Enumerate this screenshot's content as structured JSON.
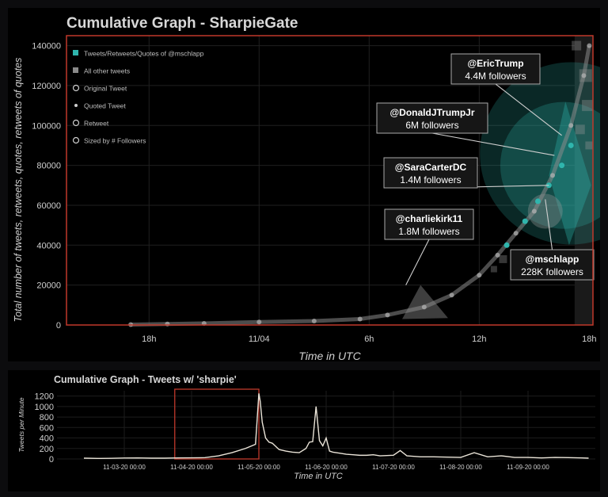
{
  "main_chart": {
    "title": "Cumulative Graph - SharpieGate",
    "xlabel": "Time in UTC",
    "ylabel": "Total number of tweets, retweets, quotes, retweets of quotes",
    "legend": [
      "Tweets/Retweets/Quotes of @mschlapp",
      "All other tweets",
      "Original Tweet",
      "Quoted Tweet",
      "Retweet",
      "Sized by # Followers"
    ],
    "callouts": [
      {
        "handle": "@EricTrump",
        "followers": "4.4M followers"
      },
      {
        "handle": "@DonaldJTrumpJr",
        "followers": "6M followers"
      },
      {
        "handle": "@SaraCarterDC",
        "followers": "1.4M followers"
      },
      {
        "handle": "@charliekirk11",
        "followers": "1.8M followers"
      },
      {
        "handle": "@mschlapp",
        "followers": "228K followers"
      }
    ],
    "colors": {
      "accent": "#2fb5ad",
      "frame": "#c0392b",
      "other": "#8a8a8a"
    }
  },
  "mini_chart": {
    "title": "Cumulative Graph - Tweets w/ 'sharpie'",
    "xlabel": "Time in UTC",
    "ylabel": "Tweets per Minute"
  },
  "chart_data": [
    {
      "type": "scatter",
      "title": "Cumulative Graph - SharpieGate",
      "xlabel": "Time in UTC",
      "ylabel": "Total number of tweets, retweets, quotes, retweets of quotes",
      "x_ticks": [
        "18h",
        "11/04",
        "6h",
        "12h",
        "18h"
      ],
      "x_tick_hours": [
        18,
        24,
        30,
        36,
        42
      ],
      "xlim_hours": [
        13.5,
        42.2
      ],
      "ylim": [
        0,
        145000
      ],
      "yticks": [
        0,
        20000,
        40000,
        60000,
        80000,
        100000,
        120000,
        140000
      ],
      "grid": true,
      "legend_position": "top-left",
      "series": [
        {
          "name": "All other tweets",
          "points": [
            [
              17,
              200
            ],
            [
              19,
              500
            ],
            [
              21,
              800
            ],
            [
              24,
              1500
            ],
            [
              27,
              2000
            ],
            [
              29.5,
              3000
            ],
            [
              31,
              5000
            ],
            [
              33,
              9000
            ],
            [
              34.5,
              15000
            ],
            [
              36,
              25000
            ],
            [
              37,
              35000
            ],
            [
              38,
              46000
            ],
            [
              39,
              57000
            ],
            [
              40,
              75000
            ],
            [
              41,
              100000
            ],
            [
              41.7,
              125000
            ],
            [
              42,
              140000
            ]
          ]
        },
        {
          "name": "Tweets/Retweets/Quotes of @mschlapp",
          "points": [
            [
              37.5,
              40000
            ],
            [
              38.5,
              52000
            ],
            [
              39.2,
              62000
            ],
            [
              39.8,
              70000
            ],
            [
              40.5,
              80000
            ],
            [
              41,
              90000
            ]
          ]
        }
      ],
      "annotations": [
        {
          "text": "@EricTrump 4.4M followers",
          "x": 40.5,
          "y": 95000
        },
        {
          "text": "@DonaldJTrumpJr 6M followers",
          "x": 40.1,
          "y": 85000
        },
        {
          "text": "@SaraCarterDC 1.4M followers",
          "x": 39.8,
          "y": 70000
        },
        {
          "text": "@charliekirk11 1.8M followers",
          "x": 32,
          "y": 20000
        },
        {
          "text": "@mschlapp 228K followers",
          "x": 39.6,
          "y": 63000
        }
      ]
    },
    {
      "type": "line",
      "title": "Cumulative Graph - Tweets w/ 'sharpie'",
      "xlabel": "Time in UTC",
      "ylabel": "Tweets per Minute",
      "x_ticks": [
        "11-03-20 00:00",
        "11-04-20 00:00",
        "11-05-20 00:00",
        "11-06-20 00:00",
        "11-07-20 00:00",
        "11-08-20 00:00",
        "11-09-20 00:00"
      ],
      "ylim": [
        0,
        1300
      ],
      "yticks": [
        0,
        200,
        400,
        600,
        800,
        1000,
        1200
      ],
      "x_days": [
        2.4,
        2.6,
        2.8,
        3.0,
        3.2,
        3.4,
        3.6,
        3.8,
        4.0,
        4.2,
        4.4,
        4.6,
        4.8,
        4.95,
        5.0,
        5.02,
        5.05,
        5.1,
        5.15,
        5.2,
        5.3,
        5.4,
        5.5,
        5.6,
        5.7,
        5.75,
        5.8,
        5.85,
        5.9,
        5.95,
        6.0,
        6.05,
        6.1,
        6.2,
        6.3,
        6.4,
        6.5,
        6.6,
        6.7,
        6.8,
        7.0,
        7.1,
        7.2,
        7.4,
        7.6,
        7.8,
        8.0,
        8.2,
        8.4,
        8.6,
        8.8,
        9.0,
        9.2,
        9.4,
        9.6,
        9.8,
        9.9
      ],
      "values": [
        15,
        10,
        12,
        18,
        20,
        15,
        15,
        20,
        22,
        25,
        60,
        120,
        200,
        280,
        1250,
        1100,
        700,
        400,
        320,
        300,
        180,
        150,
        130,
        120,
        200,
        320,
        330,
        1000,
        350,
        250,
        400,
        150,
        130,
        110,
        90,
        80,
        70,
        70,
        80,
        60,
        70,
        160,
        60,
        40,
        40,
        35,
        30,
        120,
        40,
        60,
        30,
        30,
        20,
        30,
        25,
        20,
        15
      ],
      "highlight_box_days": [
        3.75,
        5.0
      ],
      "grid": true
    }
  ]
}
